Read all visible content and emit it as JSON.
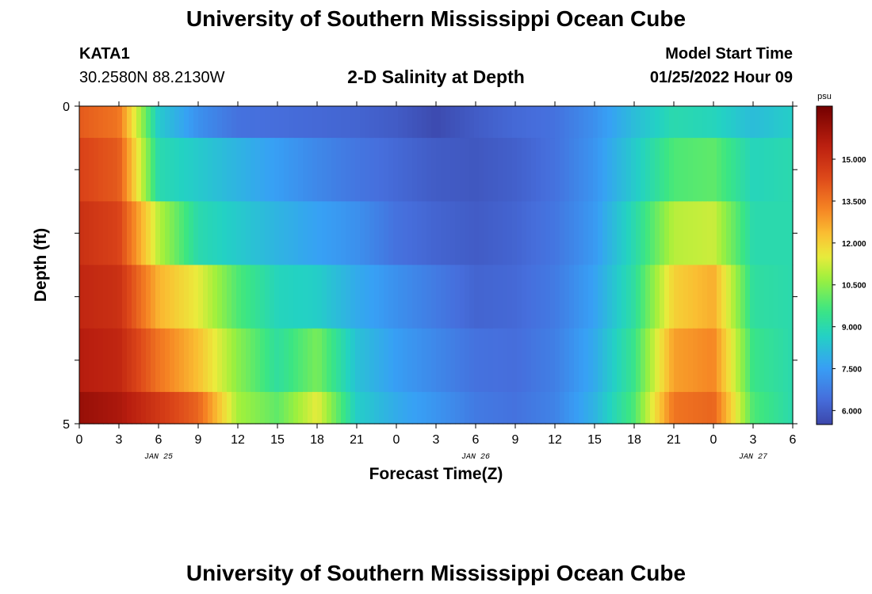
{
  "header": {
    "title": "University of Southern Mississippi Ocean Cube",
    "station_id": "KATA1",
    "station_coords": "30.2580N  88.2130W",
    "subtitle": "2-D Salinity at Depth",
    "start_label": "Model Start Time",
    "start_value": "01/25/2022 Hour 09"
  },
  "footer": {
    "title": "University of Southern Mississippi Ocean Cube"
  },
  "chart_data": {
    "type": "heatmap",
    "title": "2-D Salinity at Depth",
    "xlabel": "Forecast Time(Z)",
    "ylabel": "Depth (ft)",
    "colorbar_unit": "psu",
    "x_tick_labels": [
      "0",
      "3",
      "6",
      "9",
      "12",
      "15",
      "18",
      "21",
      "0",
      "3",
      "6",
      "9",
      "12",
      "15",
      "18",
      "21",
      "0",
      "3",
      "6"
    ],
    "date_labels": [
      {
        "label": "JAN 25",
        "at_tick": 2
      },
      {
        "label": "JAN 26",
        "at_tick": 10
      },
      {
        "label": "JAN 27",
        "at_tick": 17
      }
    ],
    "y_tick_labels": [
      "0",
      "5"
    ],
    "ylim": [
      0,
      5
    ],
    "depth_levels": [
      0,
      1,
      2,
      3,
      4,
      5
    ],
    "colorbar_ticks": [
      "6.000",
      "7.500",
      "9.000",
      "10.500",
      "12.000",
      "13.500",
      "15.000"
    ],
    "color_range": [
      5.5,
      16.9
    ],
    "x_hours": [
      0,
      3,
      6,
      9,
      12,
      15,
      18,
      21,
      24,
      27,
      30,
      33,
      36,
      39,
      42,
      45,
      48,
      51,
      54
    ],
    "salinity": [
      [
        14.0,
        13.5,
        8.5,
        7.2,
        6.5,
        6.4,
        6.3,
        6.2,
        6.0,
        5.6,
        6.0,
        6.3,
        6.5,
        7.2,
        8.2,
        9.0,
        8.8,
        8.2,
        8.6
      ],
      [
        14.5,
        14.0,
        9.0,
        8.5,
        8.0,
        7.5,
        7.0,
        6.6,
        6.3,
        6.0,
        5.9,
        6.1,
        6.5,
        7.3,
        8.5,
        9.8,
        10.0,
        8.8,
        9.0
      ],
      [
        15.0,
        14.5,
        11.0,
        9.0,
        8.5,
        8.0,
        7.6,
        7.2,
        6.5,
        6.2,
        6.0,
        6.2,
        6.6,
        7.4,
        9.0,
        11.0,
        11.2,
        9.0,
        9.0
      ],
      [
        15.3,
        15.0,
        12.5,
        11.5,
        9.8,
        8.8,
        8.6,
        7.8,
        7.2,
        6.7,
        6.2,
        6.3,
        6.7,
        7.6,
        9.2,
        12.0,
        12.6,
        9.2,
        9.0
      ],
      [
        15.6,
        15.3,
        13.5,
        12.3,
        10.5,
        9.2,
        10.3,
        8.3,
        7.5,
        7.0,
        6.5,
        6.4,
        6.8,
        7.8,
        9.5,
        12.8,
        13.2,
        9.5,
        9.0
      ],
      [
        16.2,
        15.8,
        14.8,
        13.8,
        10.8,
        10.0,
        11.5,
        8.6,
        7.8,
        7.3,
        6.7,
        6.5,
        6.9,
        8.0,
        9.8,
        13.5,
        13.8,
        9.8,
        9.0
      ]
    ]
  }
}
